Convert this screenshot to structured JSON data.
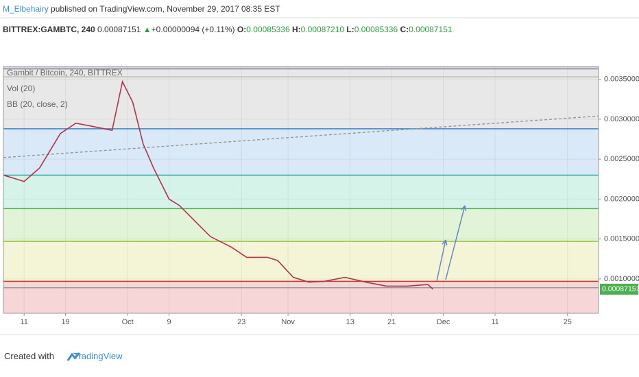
{
  "header": {
    "author": "M_Elbehairy",
    "published": "published on TradingView.com, November 29, 2017 08:35 EST"
  },
  "quote": {
    "symbol": "BITTREX:GAMBTC, 240",
    "last": "0.00087151",
    "change": "+0.00000094 (+0.11%)",
    "open_label": "O:",
    "open": "0.00085336",
    "high_label": "H:",
    "high": "0.00087210",
    "low_label": "L:",
    "low": "0.00085336",
    "close_label": "C:",
    "close": "0.00087151"
  },
  "chart_data": {
    "type": "line",
    "series": [
      {
        "name": "Gambit / Bitcoin, 240, BITTREX",
        "color": "#b2324a",
        "x": [
          "2017-09-07",
          "2017-09-11",
          "2017-09-14",
          "2017-09-18",
          "2017-09-21",
          "2017-09-25",
          "2017-09-28",
          "2017-09-30",
          "2017-10-02",
          "2017-10-04",
          "2017-10-06",
          "2017-10-09",
          "2017-10-11",
          "2017-10-15",
          "2017-10-17",
          "2017-10-21",
          "2017-10-24",
          "2017-10-28",
          "2017-10-30",
          "2017-11-02",
          "2017-11-05",
          "2017-11-08",
          "2017-11-12",
          "2017-11-16",
          "2017-11-20",
          "2017-11-24",
          "2017-11-28",
          "2017-11-29"
        ],
        "values": [
          0.0023,
          0.00222,
          0.00239,
          0.00282,
          0.00295,
          0.0029,
          0.00286,
          0.00347,
          0.00321,
          0.00269,
          0.00239,
          0.002,
          0.00192,
          0.00166,
          0.00153,
          0.0014,
          0.00127,
          0.00127,
          0.00123,
          0.00102,
          0.00096,
          0.00097,
          0.00102,
          0.00096,
          0.00091,
          0.00091,
          0.00093,
          0.00087151
        ]
      }
    ],
    "indicators": [
      "Vol (20)",
      "BB (20, close, 2)"
    ],
    "trendline": {
      "x": [
        "2017-09-07",
        "2017-12-31"
      ],
      "values": [
        0.00252,
        0.00304
      ],
      "color": "#999999"
    },
    "top_fill": "#d9d3f3",
    "levels": [
      {
        "value": 0.00363,
        "color": "#888888",
        "fill": "#e8e8e8"
      },
      {
        "value": 0.00353,
        "color": "#bbbbbb",
        "fill": "#e8e8e8"
      },
      {
        "value": 0.00288,
        "color": "#3d85c6",
        "fill": "#d9e9f7"
      },
      {
        "value": 0.0023,
        "color": "#26a69a",
        "fill": "#d6f3ea"
      },
      {
        "value": 0.00188,
        "color": "#4caf50",
        "fill": "#e2f4d8"
      },
      {
        "value": 0.00147,
        "color": "#9bc53d",
        "fill": "#f4f4d7"
      },
      {
        "value": 0.00097,
        "color": "#c0392b",
        "fill": "#f6d6d6"
      },
      {
        "value": 0.00089,
        "color": "#999999",
        "fill": "#f6d6d6"
      }
    ],
    "last_price": {
      "value": 0.00087151,
      "label": "0.00087151",
      "color": "#4caf50"
    },
    "xlim": [
      "2017-09-07",
      "2017-12-31"
    ],
    "xticks": [
      {
        "value": "2017-09-11",
        "label": "11"
      },
      {
        "value": "2017-09-19",
        "label": "19"
      },
      {
        "value": "2017-10-01",
        "label": "Oct"
      },
      {
        "value": "2017-10-09",
        "label": "9"
      },
      {
        "value": "2017-10-23",
        "label": "23"
      },
      {
        "value": "2017-11-01",
        "label": "Nov"
      },
      {
        "value": "2017-11-13",
        "label": "13"
      },
      {
        "value": "2017-11-21",
        "label": "21"
      },
      {
        "value": "2017-12-01",
        "label": "Dec"
      },
      {
        "value": "2017-12-11",
        "label": "11"
      },
      {
        "value": "2017-12-25",
        "label": "25"
      }
    ],
    "ylim": [
      0.00057,
      0.00366
    ],
    "yticks": [
      {
        "value": 0.001,
        "label": "0.00100000"
      },
      {
        "value": 0.0015,
        "label": "0.00150000"
      },
      {
        "value": 0.002,
        "label": "0.00200000"
      },
      {
        "value": 0.0025,
        "label": "0.00250000"
      },
      {
        "value": 0.003,
        "label": "0.00300000"
      },
      {
        "value": 0.0035,
        "label": "0.00350000"
      }
    ],
    "grid": true
  },
  "footer": {
    "created": "Created with",
    "brand": "TradingView"
  }
}
